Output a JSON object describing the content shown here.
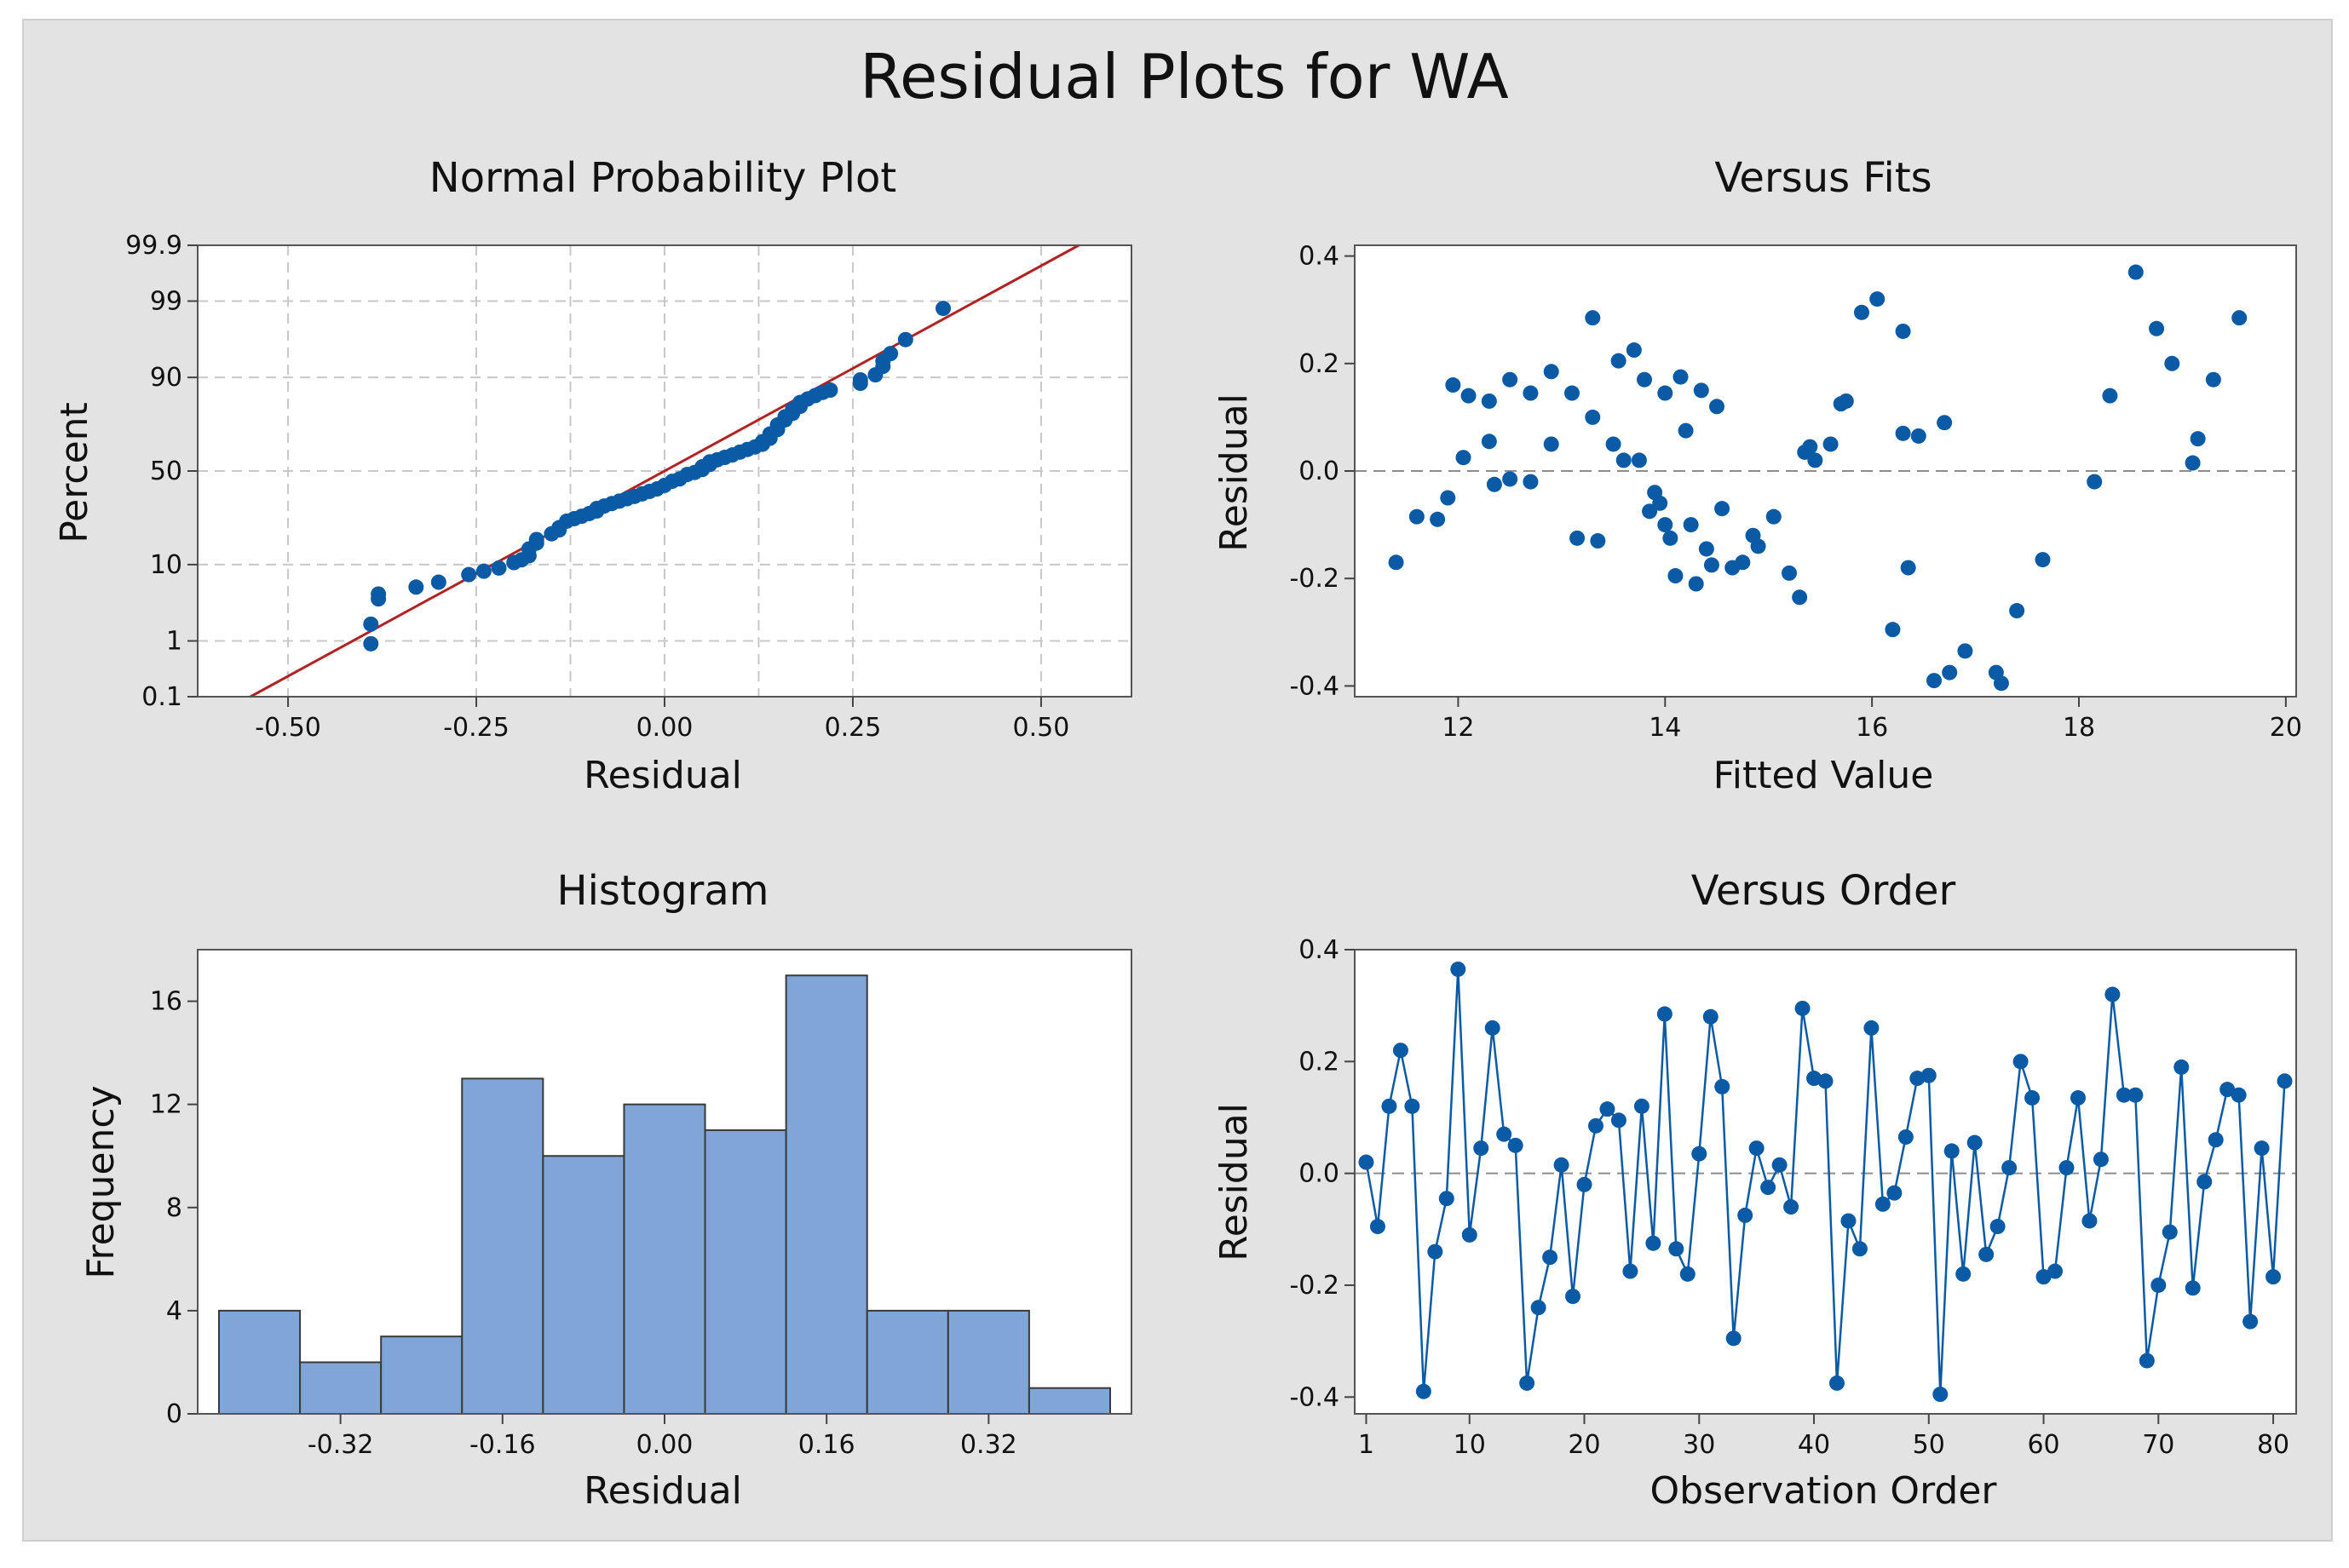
{
  "figure_title": "Residual Plots for WA",
  "colors": {
    "point": "#0b5aa6",
    "bar": "#7fa6d6",
    "bar_edge": "#3a3a3a",
    "fit_line": "#b22222",
    "grid": "#c8c8c8",
    "ref_line": "#8c8c8c"
  },
  "chart_data": [
    {
      "type": "scatter",
      "title": "Normal Probability Plot",
      "xlabel": "Residual",
      "ylabel": "Percent",
      "xlim": [
        -0.62,
        0.62
      ],
      "xticks": [
        -0.5,
        -0.25,
        0.0,
        0.25,
        0.5
      ],
      "xtick_labels": [
        "-0.50",
        "-0.25",
        "0.00",
        "0.25",
        "0.50"
      ],
      "yticks": [
        0.1,
        1,
        10,
        50,
        90,
        99,
        99.9
      ],
      "ytick_labels": [
        "0.1",
        "1",
        "10",
        "50",
        "90",
        "99",
        "99.9"
      ],
      "grid": true,
      "fit_line": {
        "x": [
          -0.55,
          0.55
        ],
        "percent": [
          0.1,
          99.9
        ]
      },
      "x": [
        -0.39,
        -0.39,
        -0.38,
        -0.38,
        -0.33,
        -0.3,
        -0.26,
        -0.24,
        -0.22,
        -0.2,
        -0.19,
        -0.18,
        -0.18,
        -0.17,
        -0.17,
        -0.15,
        -0.14,
        -0.14,
        -0.13,
        -0.12,
        -0.11,
        -0.1,
        -0.09,
        -0.09,
        -0.08,
        -0.07,
        -0.06,
        -0.05,
        -0.04,
        -0.03,
        -0.02,
        -0.01,
        0.0,
        0.01,
        0.02,
        0.03,
        0.04,
        0.05,
        0.05,
        0.06,
        0.06,
        0.07,
        0.08,
        0.09,
        0.1,
        0.11,
        0.12,
        0.13,
        0.13,
        0.14,
        0.14,
        0.15,
        0.15,
        0.16,
        0.16,
        0.17,
        0.17,
        0.18,
        0.18,
        0.19,
        0.2,
        0.21,
        0.22,
        0.26,
        0.26,
        0.28,
        0.29,
        0.29,
        0.3,
        0.32,
        0.37
      ],
      "percent": [
        0.9,
        1.8,
        4.0,
        4.6,
        5.6,
        6.4,
        7.8,
        8.5,
        9.2,
        10.5,
        11.2,
        12.3,
        14.3,
        16.2,
        17.4,
        19.5,
        21.0,
        21.9,
        24.6,
        25.7,
        26.8,
        28.0,
        29.2,
        30.4,
        31.6,
        32.8,
        34.0,
        35.2,
        36.4,
        37.7,
        39.0,
        40.3,
        42.2,
        44.4,
        45.7,
        48.1,
        49.2,
        50.8,
        52.3,
        53.6,
        55.0,
        56.1,
        57.4,
        58.7,
        60.2,
        61.6,
        62.9,
        64.3,
        65.6,
        67.3,
        69.4,
        71.5,
        73.6,
        75.8,
        77.1,
        78.5,
        80.0,
        81.2,
        82.6,
        83.8,
        84.9,
        85.9,
        86.6,
        88.5,
        89.4,
        90.6,
        92.4,
        93.4,
        94.6,
        96.4,
        98.7
      ]
    },
    {
      "type": "scatter",
      "title": "Versus Fits",
      "xlabel": "Fitted Value",
      "ylabel": "Residual",
      "xlim": [
        11.0,
        20.1
      ],
      "ylim": [
        -0.42,
        0.42
      ],
      "xticks": [
        12,
        14,
        16,
        18,
        20
      ],
      "xtick_labels": [
        "12",
        "14",
        "16",
        "18",
        "20"
      ],
      "yticks": [
        -0.4,
        -0.2,
        0.0,
        0.2,
        0.4
      ],
      "ytick_labels": [
        "-0.4",
        "-0.2",
        "0.0",
        "0.2",
        "0.4"
      ],
      "reference_line": 0.0,
      "x": [
        11.4,
        11.6,
        11.8,
        11.9,
        11.95,
        12.05,
        12.1,
        12.3,
        12.3,
        12.35,
        12.5,
        12.5,
        12.7,
        12.7,
        12.9,
        12.9,
        13.1,
        13.15,
        13.3,
        13.3,
        13.35,
        13.5,
        13.55,
        13.6,
        13.7,
        13.75,
        13.8,
        13.85,
        13.9,
        13.95,
        14.0,
        14.0,
        14.05,
        14.1,
        14.15,
        14.2,
        14.25,
        14.3,
        14.35,
        14.4,
        14.45,
        14.5,
        14.55,
        14.65,
        14.75,
        14.85,
        14.9,
        15.05,
        15.2,
        15.3,
        15.35,
        15.4,
        15.45,
        15.6,
        15.7,
        15.75,
        15.9,
        16.05,
        16.2,
        16.3,
        16.3,
        16.35,
        16.45,
        16.6,
        16.7,
        16.75,
        16.9,
        17.2,
        17.25,
        17.4,
        17.65,
        18.15,
        18.3,
        18.55,
        18.75,
        18.9,
        19.1,
        19.15,
        19.3,
        19.55
      ],
      "y": [
        -0.17,
        -0.085,
        -0.09,
        -0.05,
        0.16,
        0.025,
        0.14,
        0.055,
        0.13,
        -0.025,
        0.17,
        -0.015,
        0.145,
        -0.02,
        0.185,
        0.05,
        0.145,
        -0.125,
        0.1,
        0.285,
        -0.13,
        0.05,
        0.205,
        0.02,
        0.225,
        0.02,
        0.17,
        -0.075,
        -0.04,
        -0.06,
        -0.1,
        0.145,
        -0.125,
        -0.195,
        0.175,
        0.075,
        -0.1,
        -0.21,
        0.15,
        -0.145,
        -0.175,
        0.12,
        -0.07,
        -0.18,
        -0.17,
        -0.12,
        -0.14,
        -0.085,
        -0.19,
        -0.235,
        0.035,
        0.045,
        0.02,
        0.05,
        0.125,
        0.13,
        0.295,
        0.32,
        -0.295,
        0.26,
        0.07,
        -0.18,
        0.065,
        -0.39,
        0.09,
        -0.375,
        -0.335,
        -0.375,
        -0.395,
        -0.26,
        -0.165,
        -0.02,
        0.14,
        0.37,
        0.265,
        0.2,
        0.015,
        0.06,
        0.17,
        0.285
      ]
    },
    {
      "type": "bar",
      "title": "Histogram",
      "xlabel": "Residual",
      "ylabel": "Frequency",
      "bin_edges": [
        -0.44,
        -0.36,
        -0.28,
        -0.2,
        -0.12,
        -0.04,
        0.04,
        0.12,
        0.2,
        0.28,
        0.36,
        0.44
      ],
      "values": [
        4,
        2,
        3,
        13,
        10,
        12,
        11,
        17,
        4,
        4,
        1
      ],
      "xlim": [
        -0.44,
        0.44
      ],
      "ylim": [
        0,
        18
      ],
      "xticks": [
        -0.32,
        -0.16,
        0.0,
        0.16,
        0.32
      ],
      "xtick_labels": [
        "-0.32",
        "-0.16",
        "0.00",
        "0.16",
        "0.32"
      ],
      "yticks": [
        0,
        4,
        8,
        12,
        16
      ],
      "ytick_labels": [
        "0",
        "4",
        "8",
        "12",
        "16"
      ]
    },
    {
      "type": "line",
      "title": "Versus Order",
      "xlabel": "Observation Order",
      "ylabel": "Residual",
      "xlim": [
        0,
        82
      ],
      "ylim": [
        -0.43,
        0.4
      ],
      "xticks": [
        1,
        10,
        20,
        30,
        40,
        50,
        60,
        70,
        80
      ],
      "xtick_labels": [
        "1",
        "10",
        "20",
        "30",
        "40",
        "50",
        "60",
        "70",
        "80"
      ],
      "yticks": [
        -0.4,
        -0.2,
        0.0,
        0.2,
        0.4
      ],
      "ytick_labels": [
        "-0.4",
        "-0.2",
        "0.0",
        "0.2",
        "0.4"
      ],
      "reference_line": 0.0,
      "x": [
        1,
        2,
        3,
        4,
        5,
        6,
        7,
        8,
        9,
        10,
        11,
        12,
        13,
        14,
        15,
        16,
        17,
        18,
        19,
        20,
        21,
        22,
        23,
        24,
        25,
        26,
        27,
        28,
        29,
        30,
        31,
        32,
        33,
        34,
        35,
        36,
        37,
        38,
        39,
        40,
        41,
        42,
        43,
        44,
        45,
        46,
        47,
        48,
        49,
        50,
        51,
        52,
        53,
        54,
        55,
        56,
        57,
        58,
        59,
        60,
        61,
        62,
        63,
        64,
        65,
        66,
        67,
        68,
        69,
        70,
        71,
        72,
        73,
        74,
        75,
        76,
        77,
        78,
        79,
        80,
        81
      ],
      "y": [
        0.02,
        -0.095,
        0.12,
        0.22,
        0.12,
        -0.39,
        -0.14,
        -0.045,
        0.365,
        -0.11,
        0.045,
        0.26,
        0.07,
        0.05,
        -0.375,
        -0.24,
        -0.15,
        0.015,
        -0.22,
        -0.02,
        0.085,
        0.115,
        0.095,
        -0.175,
        0.12,
        -0.125,
        0.285,
        -0.135,
        -0.18,
        0.035,
        0.28,
        0.155,
        -0.295,
        -0.075,
        0.045,
        -0.025,
        0.015,
        -0.06,
        0.295,
        0.17,
        0.165,
        -0.375,
        -0.085,
        -0.135,
        0.26,
        -0.055,
        -0.035,
        0.065,
        0.17,
        0.175,
        -0.395,
        0.04,
        -0.18,
        0.055,
        -0.145,
        -0.095,
        0.01,
        0.2,
        0.135,
        -0.185,
        -0.175,
        0.01,
        0.135,
        -0.085,
        0.025,
        0.32,
        0.14,
        0.14,
        -0.335,
        -0.2,
        -0.105,
        0.19,
        -0.205,
        -0.015,
        0.06,
        0.15,
        0.14,
        -0.265,
        0.045,
        -0.185,
        0.165
      ]
    }
  ]
}
